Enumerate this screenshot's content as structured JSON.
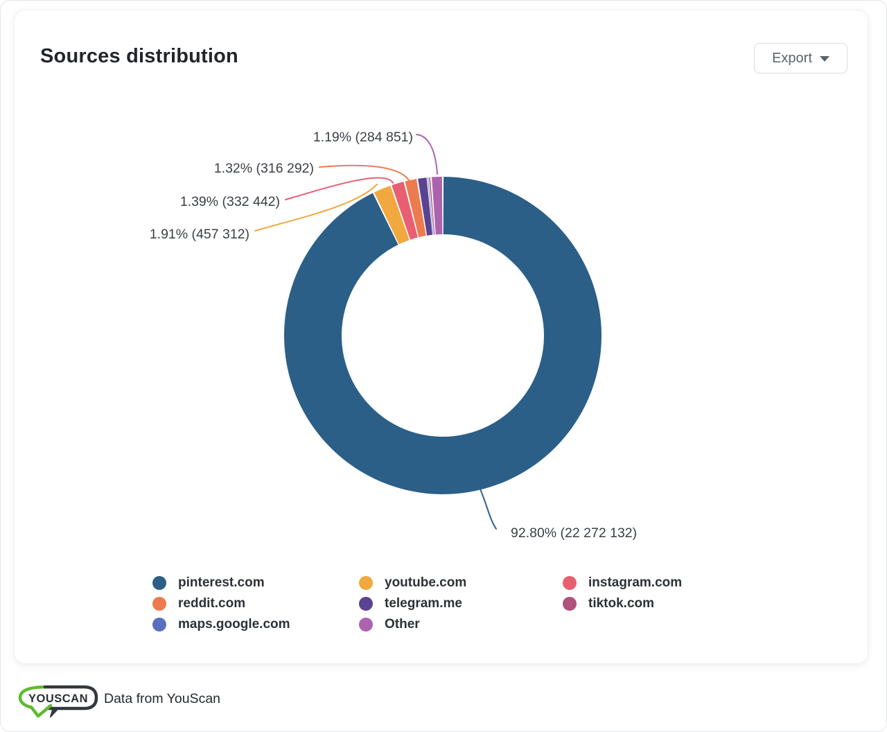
{
  "card": {
    "title": "Sources distribution",
    "export_label": "Export"
  },
  "chart_data": {
    "type": "pie",
    "subtype": "donut",
    "legend_position": "bottom",
    "slices": [
      {
        "name": "pinterest.com",
        "percent": 92.8,
        "count": "22 272 132",
        "label": "92.80% (22 272 132)",
        "color": "#2B5F88",
        "estimated": false
      },
      {
        "name": "youtube.com",
        "percent": 1.91,
        "count": "457 312",
        "label": "1.91% (457 312)",
        "color": "#F0A83F",
        "estimated": false
      },
      {
        "name": "instagram.com",
        "percent": 1.39,
        "count": "332 442",
        "label": "1.39% (332 442)",
        "color": "#E85F71",
        "estimated": false
      },
      {
        "name": "reddit.com",
        "percent": 1.32,
        "count": "316 292",
        "label": "1.32% (316 292)",
        "color": "#ED7B50",
        "estimated": false
      },
      {
        "name": "telegram.me",
        "percent": 1.02,
        "count": null,
        "label": null,
        "color": "#5A4391",
        "estimated": true
      },
      {
        "name": "maps.google.com",
        "percent": 0.1,
        "count": null,
        "label": null,
        "color": "#5B6FBF",
        "estimated": true
      },
      {
        "name": "tiktok.com",
        "percent": 0.27,
        "count": null,
        "label": null,
        "color": "#B0517E",
        "estimated": true
      },
      {
        "name": "Other",
        "percent": 1.19,
        "count": "284 851",
        "label": "1.19% (284 851)",
        "color": "#AC63AE",
        "estimated": false
      }
    ],
    "legend_columns": [
      [
        "pinterest.com",
        "reddit.com",
        "maps.google.com"
      ],
      [
        "youtube.com",
        "telegram.me",
        "Other"
      ],
      [
        "instagram.com",
        "tiktok.com"
      ]
    ]
  },
  "footer": {
    "logo_text": "YOUSCAN",
    "attribution": "Data from YouScan"
  }
}
